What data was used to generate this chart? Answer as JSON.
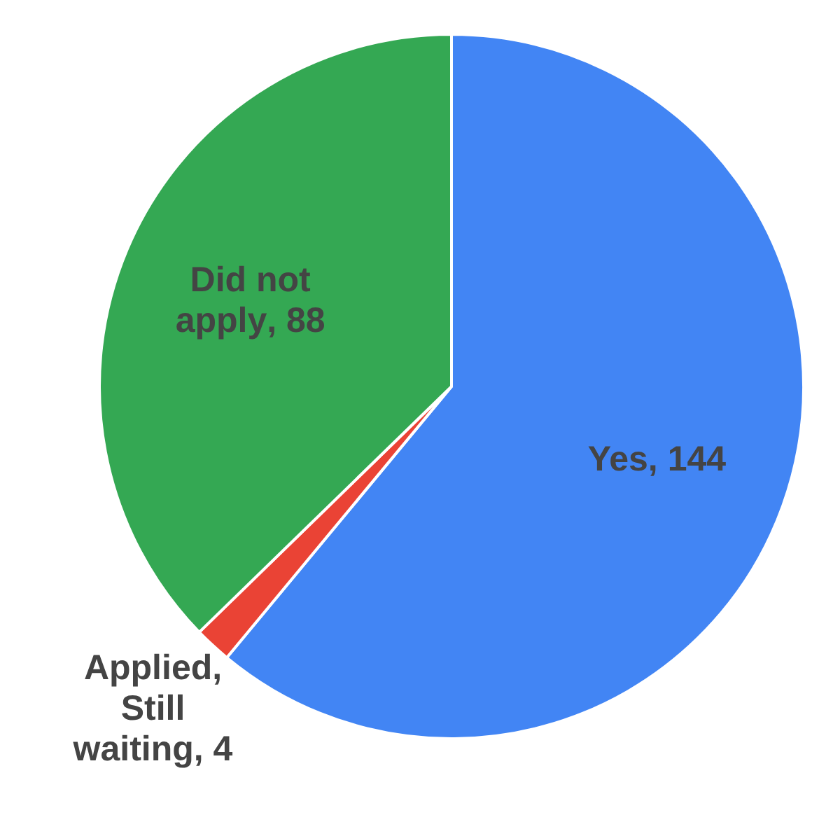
{
  "chart_data": {
    "type": "pie",
    "categories": [
      "Yes",
      "Applied, Still waiting",
      "Did not apply"
    ],
    "values": [
      144,
      4,
      88
    ],
    "colors": [
      "#4285f4",
      "#ea4335",
      "#34a853"
    ],
    "value_labels": [
      ", 144",
      ", 4",
      ", 88"
    ],
    "legend": false
  }
}
